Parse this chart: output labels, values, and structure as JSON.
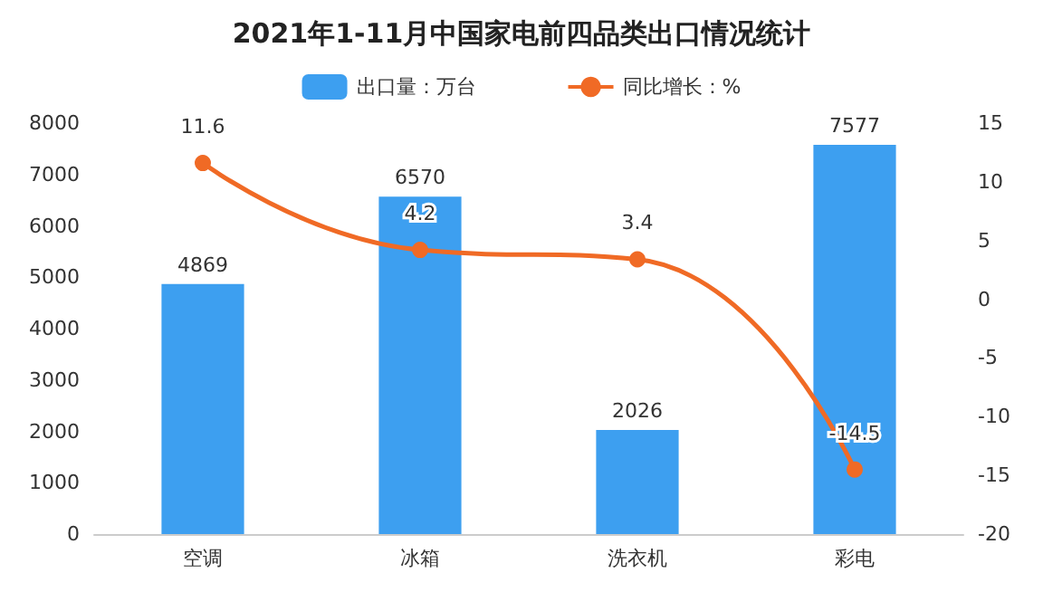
{
  "chart_data": {
    "type": "bar",
    "title": "2021年1-11月中国家电前四品类出口情况统计",
    "categories": [
      "空调",
      "冰箱",
      "洗衣机",
      "彩电"
    ],
    "series": [
      {
        "name": "出口量：万台",
        "color": "#3d9ff0",
        "values": [
          4869,
          6570,
          2026,
          7577
        ]
      },
      {
        "name": "同比增长：%",
        "type": "line",
        "axis": "y2",
        "color": "#f06a25",
        "values": [
          11.6,
          4.2,
          3.4,
          -14.5
        ],
        "marker": "circle"
      }
    ],
    "ylim": [
      0,
      8000
    ],
    "yticks": [
      0,
      1000,
      2000,
      3000,
      4000,
      5000,
      6000,
      7000,
      8000
    ],
    "y2lim": [
      -20,
      15
    ],
    "y2ticks": [
      -20,
      -15,
      -10,
      -5,
      0,
      5,
      10,
      15
    ],
    "data_labels": true,
    "legend": "top",
    "grid": false
  }
}
